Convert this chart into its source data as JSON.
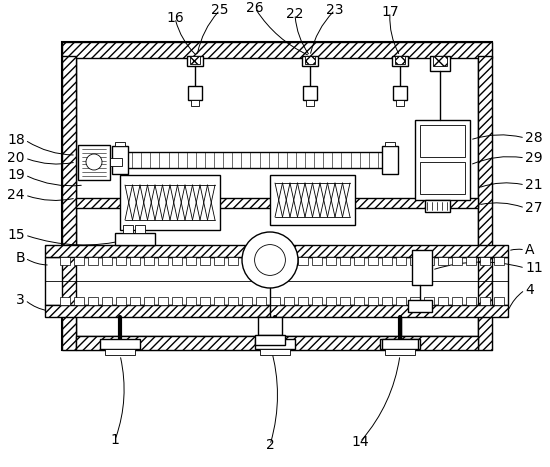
{
  "bg_color": "#ffffff",
  "line_color": "#000000",
  "fig_width": 5.5,
  "fig_height": 4.67,
  "dpi": 100,
  "label_fontsize": 9
}
